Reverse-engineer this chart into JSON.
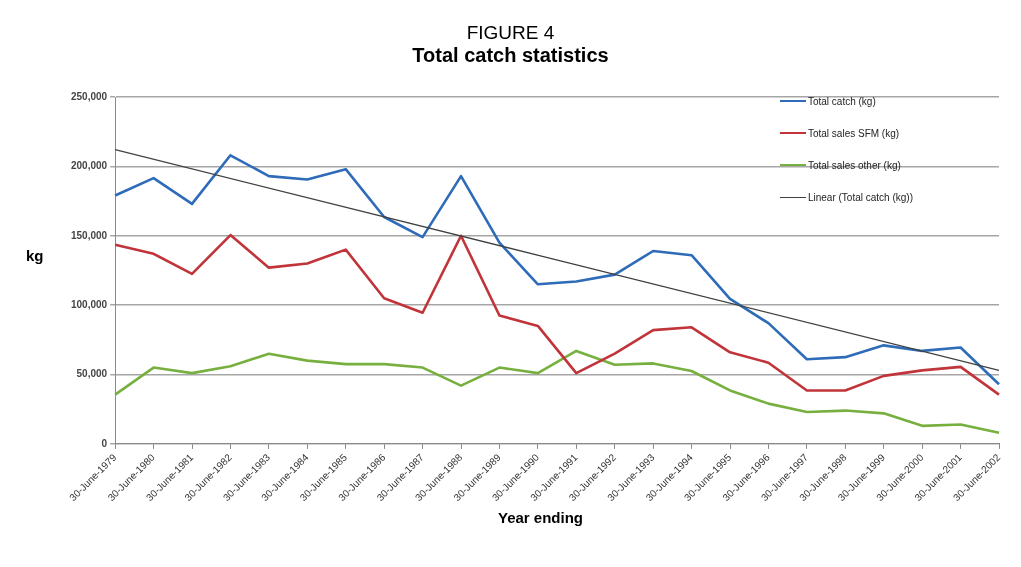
{
  "chart_data": {
    "type": "line",
    "title": "FIGURE 4",
    "subtitle": "Total catch statistics",
    "xlabel": "Year ending",
    "ylabel": "kg",
    "categories": [
      "30-June-1979",
      "30-June-1980",
      "30-June-1981",
      "30-June-1982",
      "30-June-1983",
      "30-June-1984",
      "30-June-1985",
      "30-June-1986",
      "30-June-1987",
      "30-June-1988",
      "30-June-1989",
      "30-June-1990",
      "30-June-1991",
      "30-June-1992",
      "30-June-1993",
      "30-June-1994",
      "30-June-1995",
      "30-June-1996",
      "30-June-1997",
      "30-June-1998",
      "30-June-1999",
      "30-June-2000",
      "30-June-2001",
      "30-June-2002"
    ],
    "series": [
      {
        "name": "Total catch (kg)",
        "color": "#2e6bb8",
        "values": [
          179000,
          191500,
          173000,
          208000,
          193000,
          190500,
          198000,
          163500,
          149000,
          193000,
          145000,
          115000,
          117000,
          122000,
          139000,
          136000,
          104500,
          87000,
          61000,
          62500,
          71000,
          67000,
          69500,
          43000
        ]
      },
      {
        "name": "Total sales SFM (kg)",
        "color": "#c0343a",
        "values": [
          143500,
          137000,
          122500,
          150500,
          127000,
          130000,
          140000,
          105000,
          94500,
          150000,
          92500,
          85000,
          51000,
          65000,
          82000,
          84000,
          66000,
          58500,
          38500,
          38500,
          49000,
          53000,
          55500,
          35500
        ]
      },
      {
        "name": "Total sales other (kg)",
        "color": "#78b040",
        "values": [
          35500,
          55000,
          51000,
          56000,
          65000,
          60000,
          57500,
          57500,
          55000,
          42000,
          55000,
          51000,
          67000,
          57000,
          58000,
          52500,
          38500,
          29000,
          23000,
          24000,
          22000,
          13000,
          14000,
          8000
        ]
      },
      {
        "name": "Linear (Total catch (kg))",
        "color": "#404040",
        "type": "line",
        "x": [
          "30-June-1979",
          "30-June-2002"
        ],
        "values": [
          212000,
          53000
        ]
      }
    ],
    "ylim": [
      0,
      250000
    ],
    "yticks": [
      {
        "value": 0,
        "label": "0"
      },
      {
        "value": 50000,
        "label": "50,000"
      },
      {
        "value": 100000,
        "label": "100,000"
      },
      {
        "value": 150000,
        "label": "150,000"
      },
      {
        "value": 200000,
        "label": "200,000"
      },
      {
        "value": 250000,
        "label": "250,000"
      }
    ],
    "grid": "y",
    "legend": "top right",
    "marker": "none",
    "line_style": "solid"
  }
}
